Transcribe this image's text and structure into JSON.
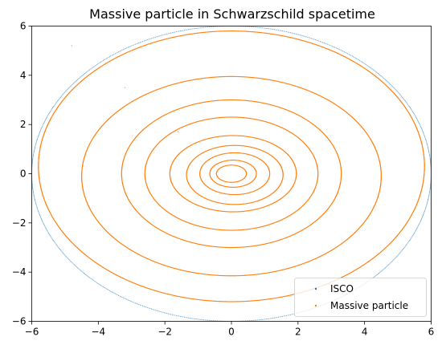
{
  "chart_data": {
    "type": "scatter",
    "title": "Massive particle in Schwarzschild spacetime",
    "xlabel": "",
    "ylabel": "",
    "xlim": [
      -6,
      6
    ],
    "ylim": [
      -6,
      6
    ],
    "grid": false,
    "legend_placement": "lower-right",
    "x_ticks": [
      -6,
      -4,
      -2,
      0,
      2,
      4,
      6
    ],
    "y_ticks": [
      -6,
      -4,
      -2,
      0,
      2,
      4,
      6
    ],
    "x_tick_labels": [
      "−6",
      "−4",
      "−2",
      "0",
      "2",
      "4",
      "6"
    ],
    "y_tick_labels": [
      "−6",
      "−4",
      "−2",
      "0",
      "2",
      "4",
      "6"
    ],
    "series": [
      {
        "name": "ISCO",
        "color": "#1f77b4",
        "marker_size": 0.55,
        "shape": "circle",
        "radius": 6
      },
      {
        "name": "Massive particle",
        "color": "#ff7f0e",
        "marker_size": 0.6,
        "shape": "inspiral",
        "loops": [
          {
            "cx": 0.0,
            "cy": 0.3,
            "rx": 5.8,
            "ry": 5.5
          },
          {
            "cx": 0.0,
            "cy": -0.1,
            "rx": 4.5,
            "ry": 4.05
          },
          {
            "cx": 0.0,
            "cy": 0.0,
            "rx": 3.3,
            "ry": 3.0
          },
          {
            "cx": 0.0,
            "cy": 0.0,
            "rx": 2.6,
            "ry": 2.3
          },
          {
            "cx": 0.05,
            "cy": 0.0,
            "rx": 1.9,
            "ry": 1.55
          },
          {
            "cx": 0.1,
            "cy": -0.05,
            "rx": 1.45,
            "ry": 1.2
          },
          {
            "cx": 0.1,
            "cy": 0.0,
            "rx": 1.05,
            "ry": 0.85
          },
          {
            "cx": 0.05,
            "cy": 0.0,
            "rx": 0.7,
            "ry": 0.55
          },
          {
            "cx": 0.0,
            "cy": 0.0,
            "rx": 0.45,
            "ry": 0.35
          }
        ],
        "stray_points": [
          [
            -4.8,
            5.2
          ],
          [
            -3.2,
            3.5
          ],
          [
            -1.6,
            1.7
          ]
        ]
      }
    ]
  }
}
